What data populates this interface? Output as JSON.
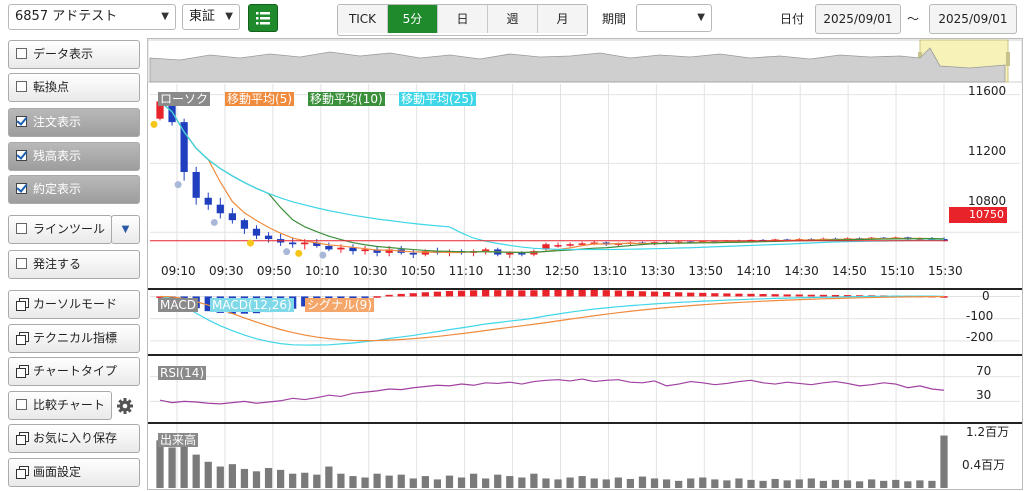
{
  "toolbar": {
    "symbol": "6857 アドテスト",
    "market": "東証",
    "tabs": [
      {
        "label": "TICK",
        "active": false
      },
      {
        "label": "5分",
        "active": true
      },
      {
        "label": "日",
        "active": false
      },
      {
        "label": "週",
        "active": false
      },
      {
        "label": "月",
        "active": false
      }
    ],
    "period_label": "期間",
    "period_value": "",
    "date_label": "日付",
    "date_from": "2025/09/01",
    "date_sep": "〜",
    "date_to": "2025/09/01"
  },
  "sidebar": {
    "items": [
      {
        "label": "データ表示",
        "type": "checkbox",
        "checked": false
      },
      {
        "label": "転換点",
        "type": "checkbox",
        "checked": false
      },
      {
        "label": "注文表示",
        "type": "checkbox",
        "checked": true
      },
      {
        "label": "残高表示",
        "type": "checkbox",
        "checked": true
      },
      {
        "label": "約定表示",
        "type": "checkbox",
        "checked": true
      },
      {
        "label": "ラインツール",
        "type": "dropdown",
        "checked": false
      },
      {
        "label": "発注する",
        "type": "checkbox",
        "checked": false
      },
      {
        "label": "カーソルモード",
        "type": "window",
        "checked": false
      },
      {
        "label": "テクニカル指標",
        "type": "window",
        "checked": false
      },
      {
        "label": "チャートタイプ",
        "type": "window",
        "checked": false
      },
      {
        "label": "比較チャート",
        "type": "checkbox-gear",
        "checked": false
      },
      {
        "label": "お気に入り保存",
        "type": "window",
        "checked": false
      },
      {
        "label": "画面設定",
        "type": "window",
        "checked": false
      }
    ]
  },
  "colors": {
    "accent": "#1e8a2c",
    "up": "#e8232a",
    "down": "#1f3fbf",
    "ma5": "#f08a3c",
    "ma10": "#3a8f3a",
    "ma25": "#3fd6e8",
    "rsi": "#a040a0",
    "volume": "#7a7a7a",
    "price_tag": "#e8232a"
  },
  "chart_data": [
    {
      "type": "candlestick",
      "legend": [
        "ローソク",
        "移動平均(5)",
        "移動平均(10)",
        "移動平均(25)"
      ],
      "y_ticks": [
        11600,
        11200,
        10800
      ],
      "ylim": [
        10650,
        11650
      ],
      "current_price": "10750",
      "x_labels": [
        "09:10",
        "09:30",
        "09:50",
        "10:10",
        "10:30",
        "10:50",
        "11:10",
        "11:30",
        "12:50",
        "13:10",
        "13:30",
        "13:50",
        "14:10",
        "14:30",
        "14:50",
        "15:10",
        "15:30"
      ],
      "candles": [
        [
          11460,
          11580,
          11450,
          11560
        ],
        [
          11560,
          11590,
          11420,
          11440
        ],
        [
          11440,
          11460,
          11100,
          11150
        ],
        [
          11150,
          11180,
          10960,
          11000
        ],
        [
          11000,
          11030,
          10930,
          10960
        ],
        [
          10960,
          11000,
          10880,
          10910
        ],
        [
          10910,
          10940,
          10850,
          10870
        ],
        [
          10870,
          10880,
          10790,
          10820
        ],
        [
          10820,
          10840,
          10760,
          10780
        ],
        [
          10780,
          10800,
          10740,
          10760
        ],
        [
          10760,
          10790,
          10720,
          10740
        ],
        [
          10740,
          10770,
          10710,
          10730
        ],
        [
          10730,
          10760,
          10700,
          10740
        ],
        [
          10740,
          10760,
          10710,
          10720
        ],
        [
          10720,
          10740,
          10690,
          10700
        ],
        [
          10700,
          10730,
          10680,
          10710
        ],
        [
          10710,
          10730,
          10670,
          10690
        ],
        [
          10690,
          10720,
          10670,
          10700
        ],
        [
          10700,
          10720,
          10660,
          10680
        ],
        [
          10680,
          10720,
          10660,
          10700
        ],
        [
          10700,
          10720,
          10670,
          10680
        ],
        [
          10680,
          10700,
          10650,
          10670
        ],
        [
          10670,
          10700,
          10660,
          10690
        ],
        [
          10690,
          10710,
          10670,
          10680
        ],
        [
          10680,
          10700,
          10660,
          10690
        ],
        [
          10690,
          10700,
          10670,
          10680
        ],
        [
          10680,
          10700,
          10660,
          10690
        ],
        [
          10690,
          10710,
          10670,
          10700
        ],
        [
          10700,
          10710,
          10660,
          10670
        ],
        [
          10670,
          10690,
          10650,
          10680
        ],
        [
          10680,
          10690,
          10660,
          10670
        ],
        [
          10670,
          10700,
          10660,
          10690
        ],
        [
          10700,
          10740,
          10690,
          10730
        ],
        [
          10720,
          10740,
          10710,
          10725
        ],
        [
          10725,
          10740,
          10715,
          10730
        ],
        [
          10730,
          10745,
          10720,
          10735
        ],
        [
          10735,
          10750,
          10725,
          10740
        ],
        [
          10740,
          10745,
          10720,
          10728
        ],
        [
          10728,
          10740,
          10720,
          10735
        ],
        [
          10735,
          10745,
          10725,
          10740
        ],
        [
          10740,
          10745,
          10725,
          10730
        ],
        [
          10730,
          10745,
          10725,
          10742
        ],
        [
          10742,
          10748,
          10730,
          10735
        ],
        [
          10735,
          10750,
          10730,
          10745
        ],
        [
          10745,
          10750,
          10735,
          10740
        ],
        [
          10740,
          10752,
          10735,
          10748
        ],
        [
          10748,
          10752,
          10735,
          10740
        ],
        [
          10740,
          10755,
          10738,
          10752
        ],
        [
          10752,
          10756,
          10740,
          10745
        ],
        [
          10745,
          10758,
          10740,
          10755
        ],
        [
          10755,
          10760,
          10745,
          10750
        ],
        [
          10750,
          10762,
          10745,
          10758
        ],
        [
          10758,
          10762,
          10748,
          10752
        ],
        [
          10752,
          10765,
          10748,
          10760
        ],
        [
          10760,
          10765,
          10750,
          10755
        ],
        [
          10755,
          10768,
          10750,
          10762
        ],
        [
          10762,
          10768,
          10752,
          10758
        ],
        [
          10758,
          10770,
          10752,
          10765
        ],
        [
          10765,
          10770,
          10755,
          10760
        ],
        [
          10760,
          10772,
          10755,
          10768
        ],
        [
          10768,
          10772,
          10758,
          10762
        ],
        [
          10762,
          10775,
          10758,
          10770
        ],
        [
          10770,
          10774,
          10755,
          10758
        ],
        [
          10758,
          10770,
          10752,
          10765
        ],
        [
          10765,
          10772,
          10750,
          10760
        ],
        [
          10760,
          10770,
          10745,
          10750
        ]
      ]
    },
    {
      "type": "macd",
      "legend": [
        "MACD",
        "MACD(12,26)",
        "シグナル(9)"
      ],
      "y_ticks": [
        0,
        -100,
        -200
      ],
      "ylim": [
        -250,
        20
      ]
    },
    {
      "type": "line",
      "legend": [
        "RSI(14)"
      ],
      "y_ticks": [
        70,
        30
      ],
      "ylim": [
        0,
        100
      ],
      "values": [
        32,
        28,
        30,
        29,
        27,
        26,
        28,
        30,
        27,
        29,
        31,
        35,
        33,
        36,
        40,
        38,
        43,
        45,
        47,
        50,
        49,
        52,
        54,
        56,
        55,
        58,
        56,
        60,
        59,
        61,
        58,
        62,
        64,
        65,
        63,
        66,
        62,
        64,
        65,
        61,
        60,
        63,
        55,
        58,
        62,
        60,
        57,
        59,
        62,
        64,
        60,
        58,
        61,
        59,
        57,
        60,
        62,
        59,
        55,
        57,
        60,
        58,
        52,
        55,
        50,
        48
      ]
    },
    {
      "type": "bar",
      "legend": [
        "出来高"
      ],
      "y_ticks": [
        "1.2百万",
        "0.4百万"
      ],
      "ylim": [
        0,
        1.3
      ],
      "values": [
        1.0,
        0.85,
        0.9,
        0.7,
        0.55,
        0.45,
        0.5,
        0.4,
        0.35,
        0.42,
        0.38,
        0.3,
        0.32,
        0.28,
        0.45,
        0.3,
        0.25,
        0.22,
        0.3,
        0.26,
        0.28,
        0.2,
        0.25,
        0.18,
        0.26,
        0.22,
        0.3,
        0.2,
        0.28,
        0.25,
        0.22,
        0.3,
        0.2,
        0.18,
        0.22,
        0.25,
        0.2,
        0.18,
        0.22,
        0.19,
        0.24,
        0.2,
        0.18,
        0.15,
        0.2,
        0.22,
        0.18,
        0.16,
        0.2,
        0.17,
        0.15,
        0.19,
        0.16,
        0.18,
        0.2,
        0.15,
        0.17,
        0.16,
        0.14,
        0.18,
        0.15,
        0.17,
        0.14,
        0.16,
        0.15,
        1.1
      ]
    }
  ]
}
